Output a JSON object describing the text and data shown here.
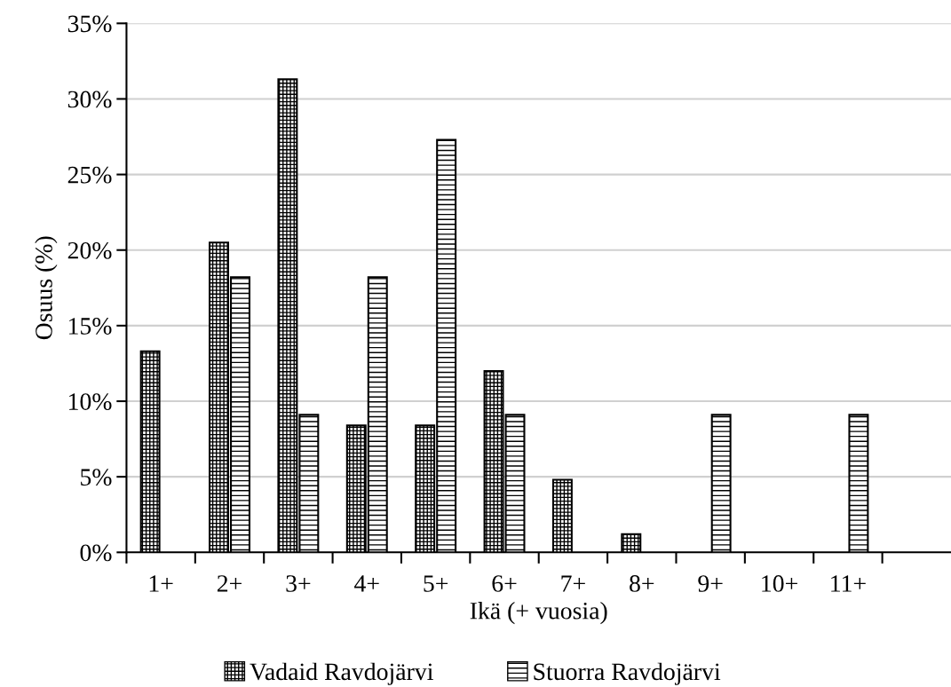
{
  "chart_data": {
    "type": "bar",
    "xlabel": "Ikä (+ vuosia)",
    "ylabel": "Osuus (%)",
    "categories": [
      "1+",
      "2+",
      "3+",
      "4+",
      "5+",
      "6+",
      "7+",
      "8+",
      "9+",
      "10+",
      "11+",
      null
    ],
    "series": [
      {
        "name": "Vadaid Ravdojärvi",
        "color": "#000000",
        "values": [
          13.3,
          20.5,
          31.3,
          8.4,
          8.4,
          12.0,
          4.8,
          1.2,
          null,
          null,
          null,
          null
        ]
      },
      {
        "name": "Stuorra Ravdojärvi",
        "color": "#000000",
        "values": [
          null,
          18.2,
          9.1,
          18.2,
          27.3,
          9.1,
          null,
          null,
          9.1,
          null,
          9.1,
          null
        ]
      }
    ],
    "ylim": [
      0,
      35
    ],
    "yticks": [
      {
        "value": 0,
        "label": "0%"
      },
      {
        "value": 5,
        "label": "5%"
      },
      {
        "value": 10,
        "label": "10%"
      },
      {
        "value": 15,
        "label": "15%"
      },
      {
        "value": 20,
        "label": "20%"
      },
      {
        "value": 25,
        "label": "25%"
      },
      {
        "value": 30,
        "label": "30%"
      },
      {
        "value": 35,
        "label": "35%"
      }
    ],
    "grid": "y",
    "legend": "bottom"
  }
}
